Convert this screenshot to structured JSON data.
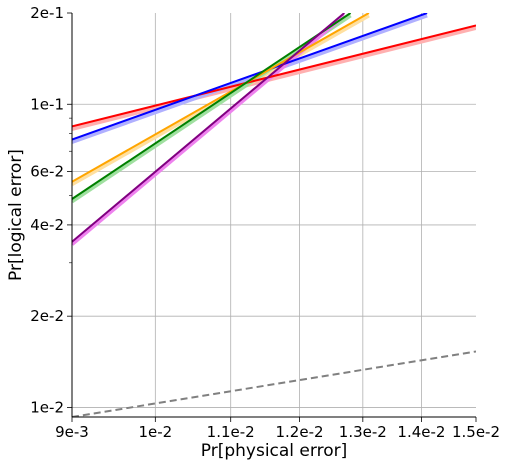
{
  "chart_data": {
    "type": "line",
    "xlabel": "Pr[physical error]",
    "ylabel": "Pr[logical error]",
    "xscale": "log",
    "yscale": "log",
    "xlim": [
      0.009,
      0.015
    ],
    "ylim": [
      0.0093,
      0.2
    ],
    "grid": true,
    "x_ticks": [
      {
        "value": 0.009,
        "label": "9e-3"
      },
      {
        "value": 0.01,
        "label": "1e-2"
      },
      {
        "value": 0.011,
        "label": "1.1e-2"
      },
      {
        "value": 0.012,
        "label": "1.2e-2"
      },
      {
        "value": 0.013,
        "label": "1.3e-2"
      },
      {
        "value": 0.014,
        "label": "1.4e-2"
      },
      {
        "value": 0.015,
        "label": "1.5e-2"
      }
    ],
    "y_ticks": [
      {
        "value": 0.01,
        "label": "1e-2"
      },
      {
        "value": 0.02,
        "label": "2e-2"
      },
      {
        "value": 0.04,
        "label": "4e-2"
      },
      {
        "value": 0.06,
        "label": "6e-2"
      },
      {
        "value": 0.1,
        "label": "1e-1"
      },
      {
        "value": 0.2,
        "label": "2e-1"
      }
    ],
    "series": [
      {
        "color": "#ff0000",
        "band_color": "#ffb0b0",
        "style": "solid",
        "x": [
          0.009,
          0.015
        ],
        "y": [
          0.0845,
          0.182
        ]
      },
      {
        "color": "#0000ff",
        "band_color": "#b0b0ff",
        "style": "solid",
        "x": [
          0.009,
          0.0141
        ],
        "y": [
          0.0765,
          0.2
        ]
      },
      {
        "color": "#ffa500",
        "band_color": "#ffe0a0",
        "style": "solid",
        "x": [
          0.009,
          0.0131
        ],
        "y": [
          0.0555,
          0.2
        ]
      },
      {
        "color": "#008000",
        "band_color": "#a0e0a0",
        "style": "solid",
        "x": [
          0.009,
          0.0128
        ],
        "y": [
          0.0487,
          0.2
        ]
      },
      {
        "color": "#800080",
        "band_color": "#ee82ee",
        "style": "solid",
        "x": [
          0.009,
          0.0127
        ],
        "y": [
          0.0352,
          0.2
        ]
      },
      {
        "color": "#808080",
        "band_color": null,
        "style": "dashed",
        "x": [
          0.009,
          0.015
        ],
        "y": [
          0.0093,
          0.0153
        ]
      }
    ]
  }
}
